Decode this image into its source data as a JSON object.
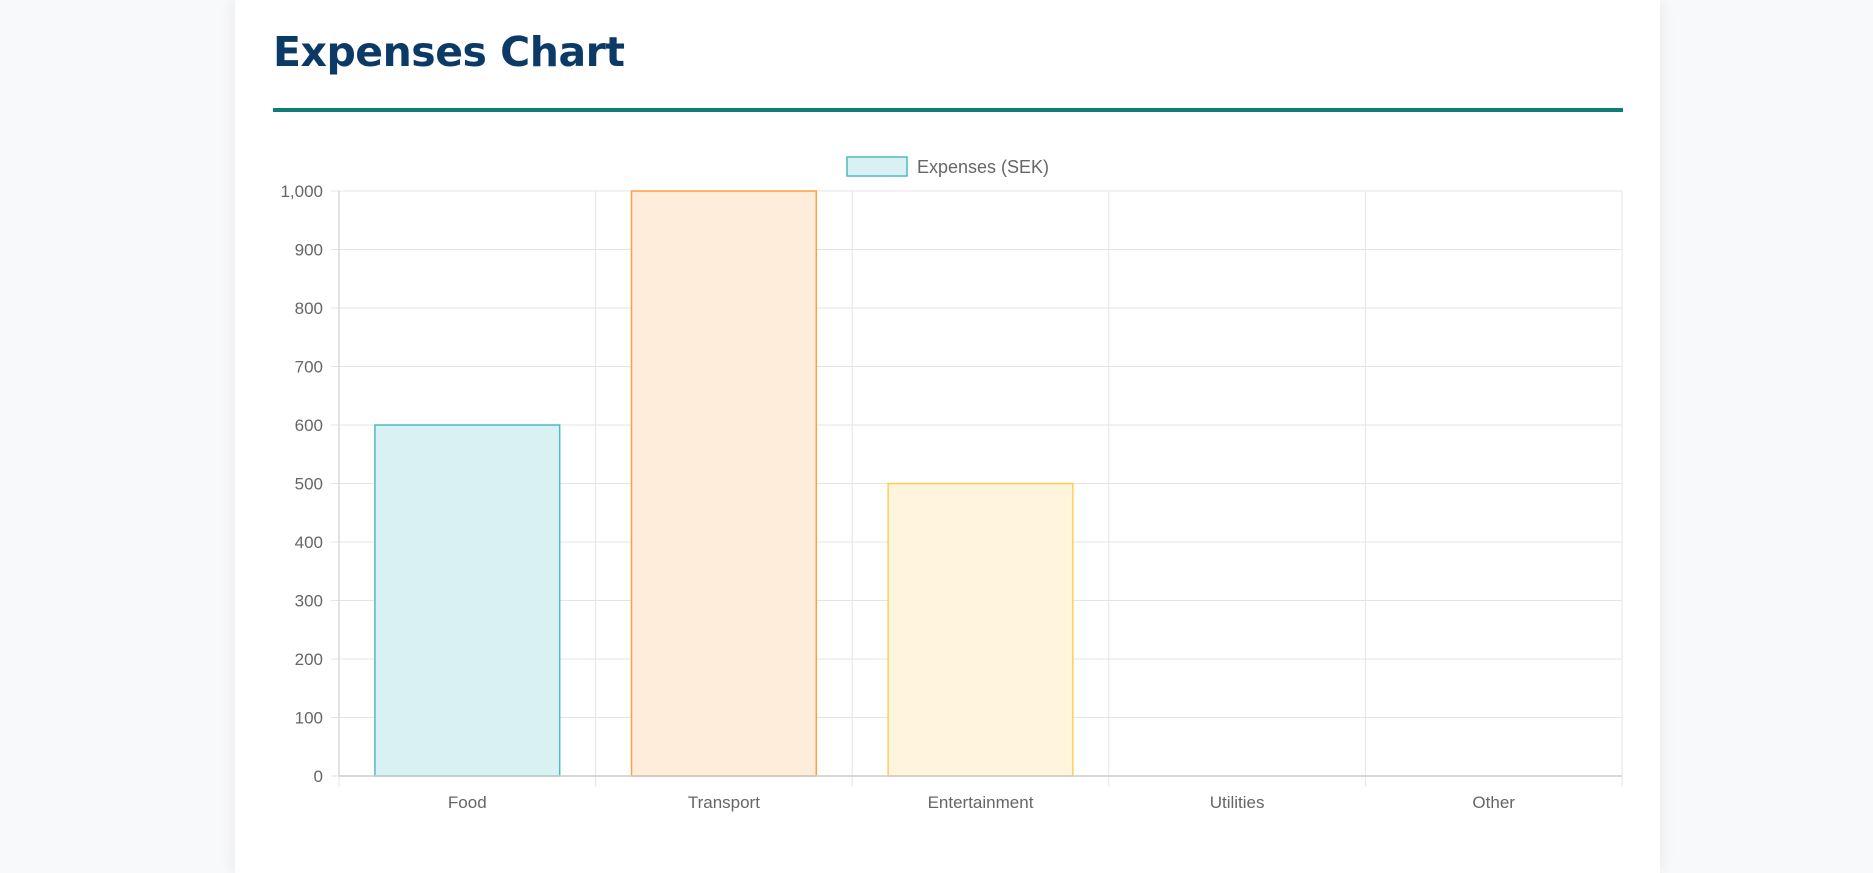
{
  "page": {
    "title": "Expenses Chart"
  },
  "colors": {
    "title": "#0b3a66",
    "accent_rule": "#0f7c78",
    "grid": "#e5e5e5",
    "axis_text": "#666666"
  },
  "chart_data": {
    "type": "bar",
    "title": "",
    "xlabel": "",
    "ylabel": "",
    "categories": [
      "Food",
      "Transport",
      "Entertainment",
      "Utilities",
      "Other"
    ],
    "series": [
      {
        "name": "Expenses (SEK)",
        "values": [
          600,
          1000,
          500,
          0,
          0
        ],
        "fill_colors": [
          "#d9f1f2",
          "#feeddb",
          "#fff5dc",
          "#d9f1f2",
          "#d9f1f2"
        ],
        "border_colors": [
          "#4bbcc0",
          "#ff9f40",
          "#ffcd56",
          "#4bbcc0",
          "#4bbcc0"
        ]
      }
    ],
    "ylim": [
      0,
      1000
    ],
    "yticks": [
      "0",
      "100",
      "200",
      "300",
      "400",
      "500",
      "600",
      "700",
      "800",
      "900",
      "1,000"
    ],
    "grid": true,
    "legend": {
      "position": "top-center",
      "fill": "#d9f1f2",
      "border": "#4bbcc0"
    }
  }
}
